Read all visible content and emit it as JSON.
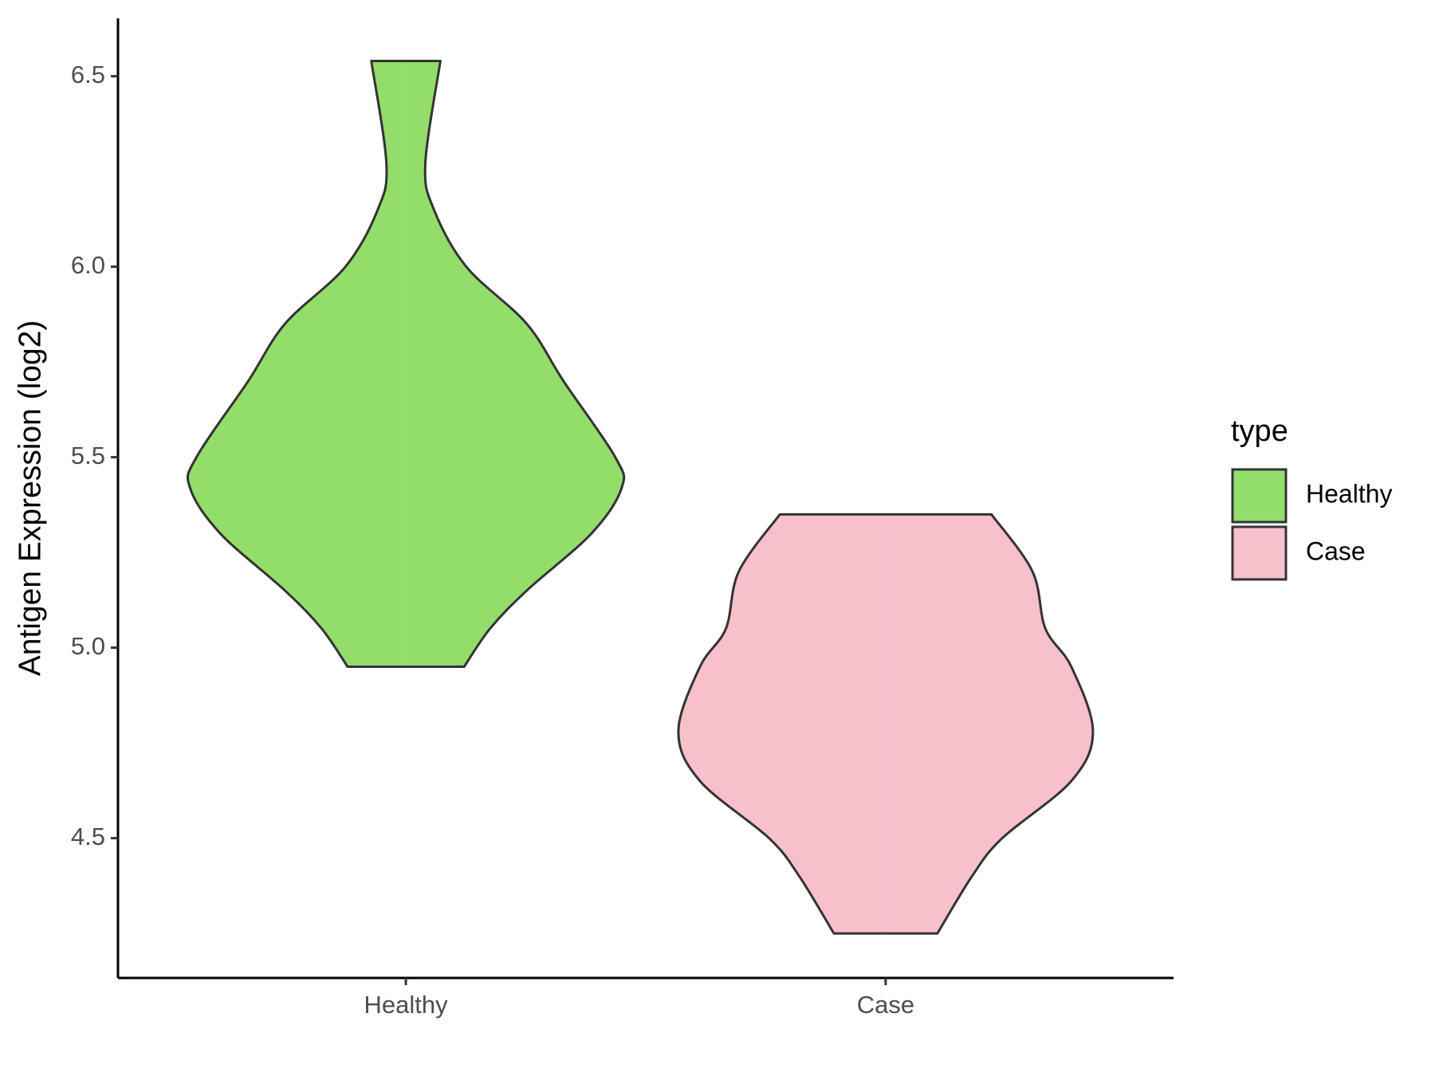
{
  "chart_data": {
    "type": "violin",
    "y_label": "Antigen Expression (log2)",
    "legend_title": "type",
    "legend_position": "right",
    "categories": [
      "Healthy",
      "Case"
    ],
    "ylim": [
      4.133,
      6.652
    ],
    "yticks": [
      {
        "value": 4.5,
        "label": "4.5"
      },
      {
        "value": 5.0,
        "label": "5.0"
      },
      {
        "value": 5.5,
        "label": "5.5"
      },
      {
        "value": 6.0,
        "label": "6.0"
      },
      {
        "value": 6.5,
        "label": "6.5"
      }
    ],
    "series": [
      {
        "name": "Healthy",
        "color": "#93dd6b",
        "y": [
          6.54,
          6.27,
          6.15,
          6.0,
          5.85,
          5.7,
          5.5,
          5.42,
          5.3,
          5.15,
          5.05,
          4.95
        ],
        "density": [
          0.16,
          0.09,
          0.13,
          0.28,
          0.56,
          0.73,
          0.97,
          1.0,
          0.86,
          0.56,
          0.39,
          0.27
        ]
      },
      {
        "name": "Case",
        "color": "#f8c0cb",
        "y": [
          5.35,
          5.2,
          5.05,
          4.95,
          4.78,
          4.65,
          4.5,
          4.4,
          4.25
        ],
        "density": [
          0.49,
          0.68,
          0.74,
          0.86,
          0.96,
          0.86,
          0.54,
          0.4,
          0.24
        ]
      }
    ]
  }
}
